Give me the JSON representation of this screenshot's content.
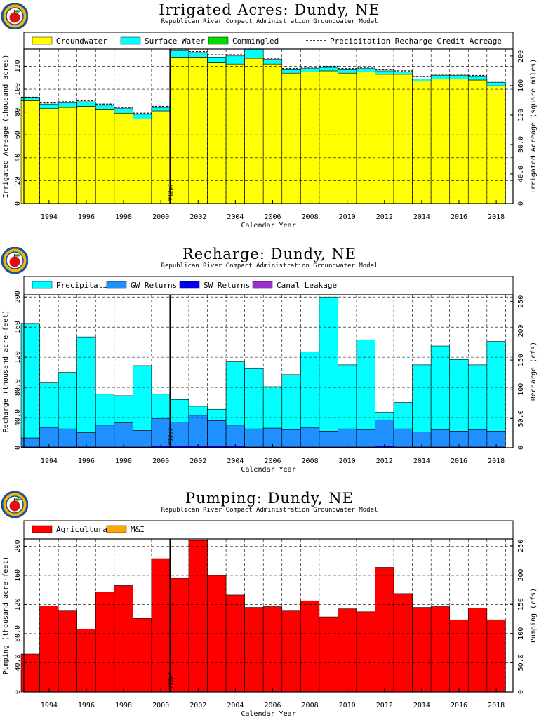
{
  "colors": {
    "groundwater": "#ffff00",
    "surface_water": "#00ffff",
    "commingled": "#00dd00",
    "precipitation": "#00ffff",
    "gw_returns": "#1e90ff",
    "sw_returns": "#0000ee",
    "canal_leakage": "#9932cc",
    "agricultural": "#ff0000",
    "mi": "#ffa500",
    "logo_ring": "#1a4fa0",
    "logo_gold": "#f2b800",
    "logo_apple": "#e01010"
  },
  "chart_data": [
    {
      "type": "bar",
      "title": "Irrigated Acres: Dundy, NE",
      "subtitle": "Republican River Compact Administration Groundwater Model",
      "xlabel": "Calendar Year",
      "ylabel": "Irrigated Acreage (thousand acres)",
      "ylabel_right": "Irrigated Acreage (square miles)",
      "ylim": [
        0,
        135
      ],
      "y_ticks": [
        "0",
        "20",
        "40",
        "60",
        "80",
        "100",
        "120"
      ],
      "y_ticks_right": [
        "0",
        "40.0",
        "80.0",
        "120",
        "160",
        "200"
      ],
      "x_tick_labels": [
        "1994",
        "1996",
        "1998",
        "2000",
        "2002",
        "2004",
        "2006",
        "2008",
        "2010",
        "2012",
        "2014",
        "2016",
        "2018"
      ],
      "grid": true,
      "legend": [
        "Groundwater",
        "Surface Water",
        "Commingled",
        "Precipitation Recharge Credit Acreage"
      ],
      "marker_label": "V12p7",
      "marker_year": 2000.5,
      "years": [
        1993,
        1994,
        1995,
        1996,
        1997,
        1998,
        1999,
        2000,
        2001,
        2002,
        2003,
        2004,
        2005,
        2006,
        2007,
        2008,
        2009,
        2010,
        2011,
        2012,
        2013,
        2014,
        2015,
        2016,
        2017,
        2018
      ],
      "series": [
        {
          "name": "Groundwater",
          "values": [
            90,
            83,
            84,
            85,
            82,
            79,
            74,
            81,
            128,
            128,
            123,
            122,
            127,
            122,
            114,
            115,
            116,
            114,
            115,
            113,
            113,
            107,
            109,
            109,
            108,
            103
          ]
        },
        {
          "name": "Surface Water",
          "values": [
            3,
            4,
            4,
            4,
            4,
            4,
            4,
            3,
            6,
            4,
            5,
            7,
            8,
            4,
            3,
            3,
            3,
            3,
            3,
            3,
            2,
            2,
            3,
            3,
            3,
            3
          ]
        },
        {
          "name": "Commingled",
          "values": [
            0,
            0,
            0,
            0,
            0,
            0,
            0,
            0,
            0,
            0,
            0,
            0,
            0,
            0,
            0,
            0,
            0,
            0,
            0,
            0,
            0,
            0,
            0,
            0,
            0,
            0
          ]
        },
        {
          "name": "Precipitation Recharge Credit Acreage",
          "values": [
            93,
            88,
            89,
            90,
            87,
            84,
            79,
            85,
            135,
            133,
            130,
            130,
            135,
            127,
            118,
            119,
            120,
            118,
            119,
            117,
            116,
            111,
            113,
            113,
            112,
            107
          ]
        }
      ]
    },
    {
      "type": "bar",
      "title": "Recharge: Dundy, NE",
      "subtitle": "Republican River Compact Administration Groundwater Model",
      "xlabel": "Calendar Year",
      "ylabel": "Recharge (thousand acre-feet)",
      "ylabel_right": "Recharge (cfs)",
      "ylim": [
        0,
        203
      ],
      "y_ticks": [
        "0",
        "40.0",
        "80.0",
        "120",
        "160",
        "200"
      ],
      "y_ticks_right": [
        "0",
        "50.0",
        "100",
        "150",
        "200",
        "250"
      ],
      "x_tick_labels": [
        "1994",
        "1996",
        "1998",
        "2000",
        "2002",
        "2004",
        "2006",
        "2008",
        "2010",
        "2012",
        "2014",
        "2016",
        "2018"
      ],
      "grid": true,
      "legend": [
        "Precipitation",
        "GW Returns",
        "SW Returns",
        "Canal Leakage"
      ],
      "marker_label": "V12p7",
      "marker_year": 2000.5,
      "years": [
        1993,
        1994,
        1995,
        1996,
        1997,
        1998,
        1999,
        2000,
        2001,
        2002,
        2003,
        2004,
        2005,
        2006,
        2007,
        2008,
        2009,
        2010,
        2011,
        2012,
        2013,
        2014,
        2015,
        2016,
        2017,
        2018
      ],
      "series": [
        {
          "name": "SW Returns",
          "values": [
            1,
            1,
            1,
            1,
            1,
            1,
            1,
            2,
            2,
            2,
            2,
            2,
            1,
            1,
            1,
            1,
            1,
            1,
            1,
            2,
            1,
            1,
            1,
            1,
            1,
            1
          ]
        },
        {
          "name": "GW Returns",
          "values": [
            12,
            26,
            24,
            19,
            29,
            32,
            22,
            37,
            32,
            41,
            34,
            28,
            24,
            25,
            23,
            26,
            21,
            24,
            23,
            35,
            24,
            20,
            23,
            21,
            23,
            21
          ]
        },
        {
          "name": "Canal Leakage",
          "values": [
            0,
            0,
            0,
            0,
            0,
            0,
            0,
            0,
            0,
            0,
            0,
            0,
            0,
            0,
            0,
            0,
            0,
            0,
            0,
            0,
            0,
            0,
            0,
            0,
            0,
            0
          ]
        },
        {
          "name": "Precipitation",
          "values": [
            152,
            59,
            75,
            127,
            41,
            36,
            86,
            32,
            30,
            12,
            15,
            84,
            80,
            55,
            73,
            100,
            178,
            85,
            119,
            10,
            35,
            89,
            111,
            95,
            86,
            119
          ]
        }
      ]
    },
    {
      "type": "bar",
      "title": "Pumping: Dundy, NE",
      "subtitle": "Republican River Compact Administration Groundwater Model",
      "xlabel": "Calendar Year",
      "ylabel": "Pumping (thousand acre-feet)",
      "ylabel_right": "Pumping (cfs)",
      "ylim": [
        0,
        210
      ],
      "y_ticks": [
        "0",
        "40.0",
        "80.0",
        "120",
        "160",
        "200"
      ],
      "y_ticks_right": [
        "0",
        "50.0",
        "100",
        "150",
        "200",
        "250"
      ],
      "x_tick_labels": [
        "1994",
        "1996",
        "1998",
        "2000",
        "2002",
        "2004",
        "2006",
        "2008",
        "2010",
        "2012",
        "2014",
        "2016",
        "2018"
      ],
      "grid": true,
      "legend": [
        "Agricultural",
        "M&I"
      ],
      "marker_label": "V12p7",
      "marker_year": 2000.5,
      "years": [
        1993,
        1994,
        1995,
        1996,
        1997,
        1998,
        1999,
        2000,
        2001,
        2002,
        2003,
        2004,
        2005,
        2006,
        2007,
        2008,
        2009,
        2010,
        2011,
        2012,
        2013,
        2014,
        2015,
        2016,
        2017,
        2018
      ],
      "series": [
        {
          "name": "Agricultural",
          "values": [
            52,
            118,
            112,
            86,
            137,
            146,
            101,
            183,
            156,
            208,
            160,
            133,
            116,
            117,
            112,
            125,
            103,
            114,
            110,
            171,
            135,
            116,
            117,
            99,
            115,
            99
          ]
        },
        {
          "name": "M&I",
          "values": [
            0,
            0,
            0,
            0,
            0,
            0,
            0,
            0,
            0,
            0,
            0,
            0,
            0,
            0,
            0,
            0,
            0,
            0,
            0,
            0,
            0,
            0,
            0,
            0,
            0,
            0
          ]
        }
      ]
    }
  ]
}
